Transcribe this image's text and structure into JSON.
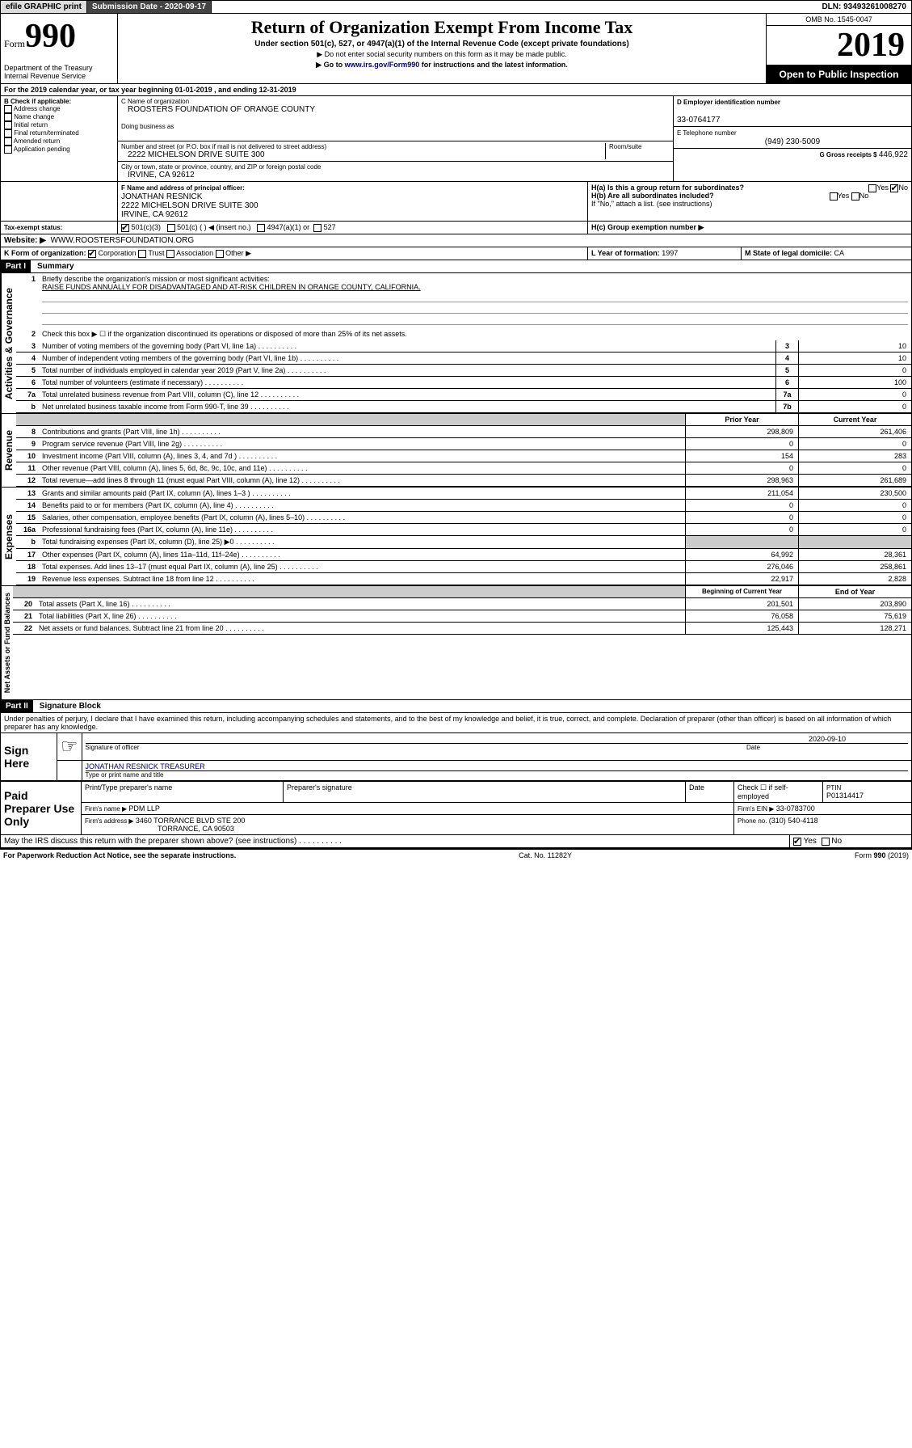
{
  "topbar": {
    "efile": "efile GRAPHIC print",
    "subdate_label": "Submission Date - ",
    "subdate": "2020-09-17",
    "dln_label": "DLN: ",
    "dln": "93493261008270"
  },
  "header": {
    "form_prefix": "Form",
    "form_num": "990",
    "dept": "Department of the Treasury\nInternal Revenue Service",
    "title": "Return of Organization Exempt From Income Tax",
    "subtitle": "Under section 501(c), 527, or 4947(a)(1) of the Internal Revenue Code (except private foundations)",
    "note1": "▶ Do not enter social security numbers on this form as it may be made public.",
    "note2_pre": "▶ Go to ",
    "note2_link": "www.irs.gov/Form990",
    "note2_post": " for instructions and the latest information.",
    "omb": "OMB No. 1545-0047",
    "year": "2019",
    "inspection": "Open to Public Inspection"
  },
  "sectionA": {
    "period": "For the 2019 calendar year, or tax year beginning 01-01-2019     , and ending 12-31-2019",
    "b_label": "B Check if applicable:",
    "b_opts": [
      "Address change",
      "Name change",
      "Initial return",
      "Final return/terminated",
      "Amended return",
      "Application pending"
    ],
    "c_name_label": "C Name of organization",
    "c_name": "ROOSTERS FOUNDATION OF ORANGE COUNTY",
    "dba_label": "Doing business as",
    "addr_label": "Number and street (or P.O. box if mail is not delivered to street address)",
    "room_label": "Room/suite",
    "addr": "2222 MICHELSON DRIVE SUITE 300",
    "city_label": "City or town, state or province, country, and ZIP or foreign postal code",
    "city": "IRVINE, CA  92612",
    "d_label": "D Employer identification number",
    "d_val": "33-0764177",
    "e_label": "E Telephone number",
    "e_val": "(949) 230-5009",
    "g_label": "G Gross receipts $ ",
    "g_val": "446,922",
    "f_label": "F  Name and address of principal officer:",
    "f_name": "JONATHAN RESNICK",
    "f_addr1": "2222 MICHELSON DRIVE SUITE 300",
    "f_addr2": "IRVINE, CA  92612",
    "ha_label": "H(a)  Is this a group return for subordinates?",
    "hb_label": "H(b)  Are all subordinates included?",
    "h_note": "If \"No,\" attach a list. (see instructions)",
    "hc_label": "H(c)  Group exemption number ▶",
    "i_label": "Tax-exempt status:",
    "i_501c3": "501(c)(3)",
    "i_501c": "501(c) (  ) ◀ (insert no.)",
    "i_4947": "4947(a)(1) or",
    "i_527": "527",
    "j_label": "Website: ▶",
    "j_val": "WWW.ROOSTERSFOUNDATION.ORG",
    "k_label": "K Form of organization:",
    "k_opts": [
      "Corporation",
      "Trust",
      "Association",
      "Other ▶"
    ],
    "l_label": "L Year of formation: ",
    "l_val": "1997",
    "m_label": "M State of legal domicile: ",
    "m_val": "CA"
  },
  "part1": {
    "header": "Part I",
    "title": "Summary",
    "side1": "Activities & Governance",
    "side2": "Revenue",
    "side3": "Expenses",
    "side4": "Net Assets or Fund Balances",
    "l1": "Briefly describe the organization's mission or most significant activities:",
    "l1val": "RAISE FUNDS ANNUALLY FOR DISADVANTAGED AND AT-RISK CHILDREN IN ORANGE COUNTY, CALIFORNIA.",
    "l2": "Check this box ▶ ☐  if the organization discontinued its operations or disposed of more than 25% of its net assets.",
    "lines_gov": [
      {
        "n": "3",
        "t": "Number of voting members of the governing body (Part VI, line 1a)",
        "b": "3",
        "v": "10"
      },
      {
        "n": "4",
        "t": "Number of independent voting members of the governing body (Part VI, line 1b)",
        "b": "4",
        "v": "10"
      },
      {
        "n": "5",
        "t": "Total number of individuals employed in calendar year 2019 (Part V, line 2a)",
        "b": "5",
        "v": "0"
      },
      {
        "n": "6",
        "t": "Total number of volunteers (estimate if necessary)",
        "b": "6",
        "v": "100"
      },
      {
        "n": "7a",
        "t": "Total unrelated business revenue from Part VIII, column (C), line 12",
        "b": "7a",
        "v": "0"
      },
      {
        "n": "b",
        "t": "Net unrelated business taxable income from Form 990-T, line 39",
        "b": "7b",
        "v": "0"
      }
    ],
    "col_prior": "Prior Year",
    "col_current": "Current Year",
    "lines_rev": [
      {
        "n": "8",
        "t": "Contributions and grants (Part VIII, line 1h)",
        "p": "298,809",
        "c": "261,406"
      },
      {
        "n": "9",
        "t": "Program service revenue (Part VIII, line 2g)",
        "p": "0",
        "c": "0"
      },
      {
        "n": "10",
        "t": "Investment income (Part VIII, column (A), lines 3, 4, and 7d )",
        "p": "154",
        "c": "283"
      },
      {
        "n": "11",
        "t": "Other revenue (Part VIII, column (A), lines 5, 6d, 8c, 9c, 10c, and 11e)",
        "p": "0",
        "c": "0"
      },
      {
        "n": "12",
        "t": "Total revenue—add lines 8 through 11 (must equal Part VIII, column (A), line 12)",
        "p": "298,963",
        "c": "261,689"
      }
    ],
    "lines_exp": [
      {
        "n": "13",
        "t": "Grants and similar amounts paid (Part IX, column (A), lines 1–3 )",
        "p": "211,054",
        "c": "230,500"
      },
      {
        "n": "14",
        "t": "Benefits paid to or for members (Part IX, column (A), line 4)",
        "p": "0",
        "c": "0"
      },
      {
        "n": "15",
        "t": "Salaries, other compensation, employee benefits (Part IX, column (A), lines 5–10)",
        "p": "0",
        "c": "0"
      },
      {
        "n": "16a",
        "t": "Professional fundraising fees (Part IX, column (A), line 11e)",
        "p": "0",
        "c": "0"
      },
      {
        "n": "b",
        "t": "Total fundraising expenses (Part IX, column (D), line 25) ▶0",
        "p": "",
        "c": "",
        "grey": true
      },
      {
        "n": "17",
        "t": "Other expenses (Part IX, column (A), lines 11a–11d, 11f–24e)",
        "p": "64,992",
        "c": "28,361"
      },
      {
        "n": "18",
        "t": "Total expenses. Add lines 13–17 (must equal Part IX, column (A), line 25)",
        "p": "276,046",
        "c": "258,861"
      },
      {
        "n": "19",
        "t": "Revenue less expenses. Subtract line 18 from line 12",
        "p": "22,917",
        "c": "2,828"
      }
    ],
    "col_begin": "Beginning of Current Year",
    "col_end": "End of Year",
    "lines_net": [
      {
        "n": "20",
        "t": "Total assets (Part X, line 16)",
        "p": "201,501",
        "c": "203,890"
      },
      {
        "n": "21",
        "t": "Total liabilities (Part X, line 26)",
        "p": "76,058",
        "c": "75,619"
      },
      {
        "n": "22",
        "t": "Net assets or fund balances. Subtract line 21 from line 20",
        "p": "125,443",
        "c": "128,271"
      }
    ]
  },
  "part2": {
    "header": "Part II",
    "title": "Signature Block",
    "decl": "Under penalties of perjury, I declare that I have examined this return, including accompanying schedules and statements, and to the best of my knowledge and belief, it is true, correct, and complete. Declaration of preparer (other than officer) is based on all information of which preparer has any knowledge.",
    "sign_here": "Sign Here",
    "sig_date": "2020-09-10",
    "sig_label": "Signature of officer",
    "date_label": "Date",
    "name_title": "JONATHAN RESNICK TREASURER",
    "name_label": "Type or print name and title",
    "paid": "Paid Preparer Use Only",
    "prep_name_label": "Print/Type preparer's name",
    "prep_sig_label": "Preparer's signature",
    "prep_date_label": "Date",
    "check_self": "Check ☐ if self-employed",
    "ptin_label": "PTIN",
    "ptin": "P01314417",
    "firm_name_label": "Firm's name    ▶ ",
    "firm_name": "PDM LLP",
    "firm_ein_label": "Firm's EIN ▶ ",
    "firm_ein": "33-0783700",
    "firm_addr_label": "Firm's address ▶ ",
    "firm_addr1": "3460 TORRANCE BLVD STE 200",
    "firm_addr2": "TORRANCE, CA  90503",
    "phone_label": "Phone no. ",
    "phone": "(310) 540-4118",
    "discuss": "May the IRS discuss this return with the preparer shown above? (see instructions)",
    "yes": "Yes",
    "no": "No"
  },
  "footer": {
    "pra": "For Paperwork Reduction Act Notice, see the separate instructions.",
    "cat": "Cat. No. 11282Y",
    "form": "Form 990 (2019)"
  }
}
